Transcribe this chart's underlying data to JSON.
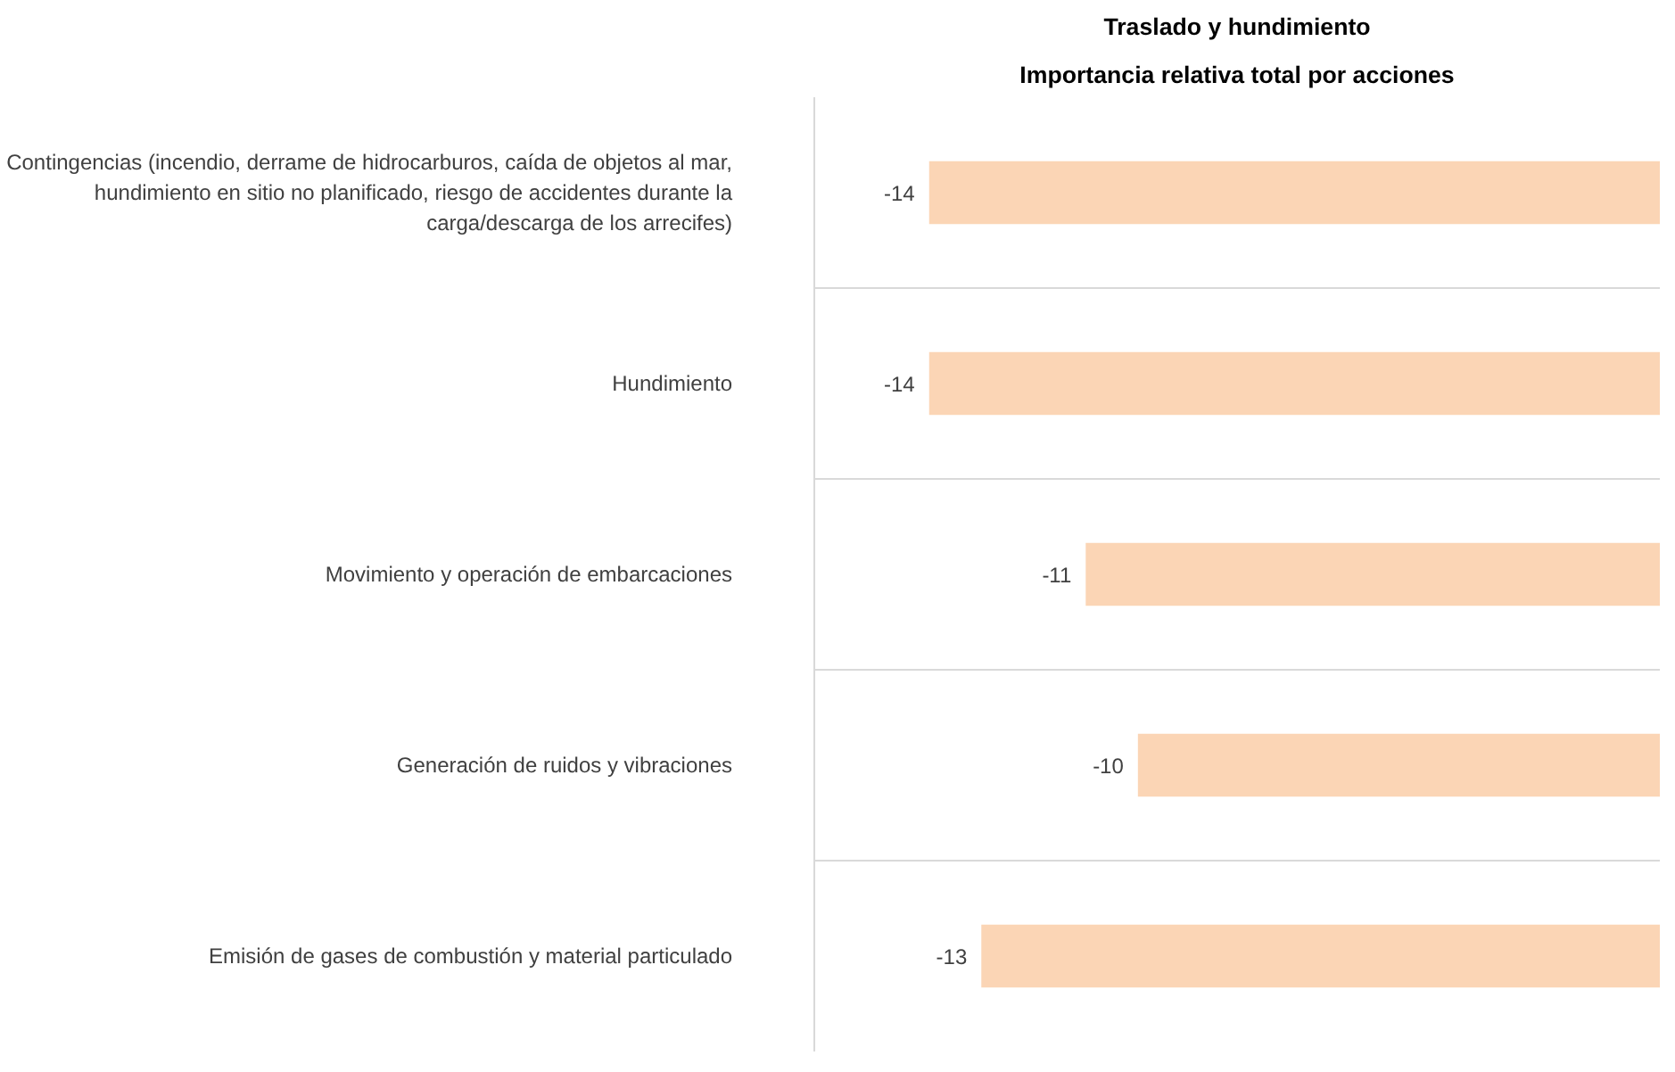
{
  "chart_data": {
    "type": "bar",
    "orientation": "horizontal",
    "title": "Traslado y hundimiento",
    "subtitle": "Importancia relativa total por acciones",
    "categories": [
      "Contingencias (incendio, derrame de hidrocarburos, caída de objetos al mar, hundimiento en sitio no planificado, riesgo de accidentes durante la carga/descarga de los arrecifes)",
      "Hundimiento",
      "Movimiento y operación de embarcaciones",
      "Generación de ruidos y vibraciones",
      "Emisión de gases de combustión y material particulado"
    ],
    "values": [
      -14,
      -14,
      -11,
      -10,
      -13
    ],
    "color": "#fbd5b5",
    "xlim": [
      -16.2,
      0
    ],
    "data_labels": true,
    "grid": "y",
    "tick_labels": "y"
  }
}
